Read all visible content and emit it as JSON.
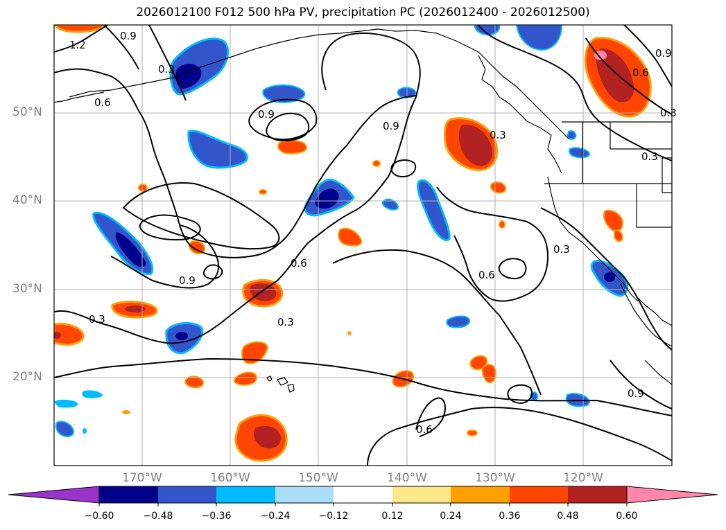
{
  "title": "2026012100 F012 500 hPa PV, precipitation PC (2026012400 - 2026012500)",
  "axes": {
    "lat_labels": [
      "50°N",
      "40°N",
      "30°N",
      "20°N"
    ],
    "lon_labels": [
      "170°W",
      "160°W",
      "150°W",
      "140°W",
      "130°W",
      "120°W"
    ]
  },
  "contour_labels": [
    "1.2",
    "0.9",
    "0.3",
    "0.6",
    "0.9",
    "0.9",
    "0.3",
    "0.9",
    "0.6",
    "0.3",
    "0.3",
    "0.6",
    "0.3",
    "0.6",
    "0.3",
    "0.3",
    "0.9",
    "0.6",
    "0.9"
  ],
  "colorbar": {
    "ticks": [
      "−0.60",
      "−0.48",
      "−0.36",
      "−0.24",
      "−0.12",
      "0.12",
      "0.24",
      "0.36",
      "0.48",
      "0.60"
    ],
    "colors": [
      "#9933cc",
      "#00008b",
      "#3355cc",
      "#00bbff",
      "#aaddf8",
      "#ffffff",
      "#ffe88a",
      "#ffa000",
      "#ff4500",
      "#b22222",
      "#ff88aa"
    ]
  },
  "colors": {
    "positive_core": "#b22222",
    "positive_mid": "#ff4500",
    "positive_edge": "#ffa000",
    "negative_core": "#00008b",
    "negative_mid": "#3355cc",
    "negative_edge": "#00bbff",
    "grid": "#b0b0b0",
    "axis_label": "#808080"
  }
}
